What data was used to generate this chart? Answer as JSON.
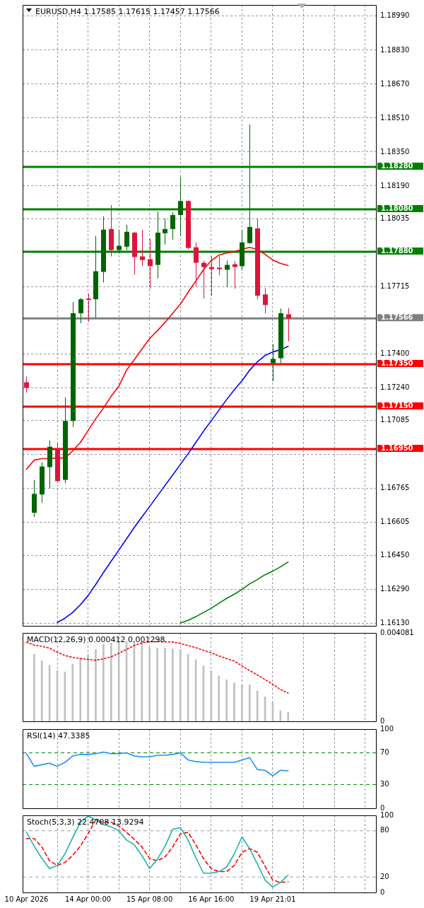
{
  "chart_data": [
    {
      "type": "candlestick",
      "title": "EURUSD,H4 1.17585 1.17615 1.17457 1.17566",
      "categories": [
        null,
        null,
        null,
        null,
        null,
        null,
        null,
        null,
        null,
        null,
        null,
        null,
        null,
        null,
        null,
        null,
        null,
        null,
        null,
        null,
        null,
        null,
        null,
        null,
        null,
        null,
        null,
        null,
        null,
        null,
        null,
        null,
        null,
        null,
        null,
        null,
        null,
        null,
        null,
        null,
        null,
        null,
        null,
        null,
        null,
        null
      ],
      "ohlc": [
        [
          1.17265,
          1.17292,
          1.17216,
          1.17239
        ],
        [
          1.1665,
          1.16805,
          1.1663,
          1.16739
        ],
        [
          1.16736,
          1.16888,
          1.16696,
          1.16868
        ],
        [
          1.16865,
          1.16991,
          1.16766,
          1.16961
        ],
        [
          1.16954,
          1.16981,
          1.16792,
          1.16799
        ],
        [
          1.16805,
          1.17193,
          1.16789,
          1.17083
        ],
        [
          1.17083,
          1.17643,
          1.17054,
          1.1759
        ],
        [
          1.1759,
          1.17663,
          1.17543,
          1.17656
        ],
        [
          1.17659,
          1.17682,
          1.1755,
          1.17653
        ],
        [
          1.17656,
          1.17954,
          1.1757,
          1.17788
        ],
        [
          1.17785,
          1.18047,
          1.17735,
          1.17984
        ],
        [
          1.17987,
          1.181,
          1.17858,
          1.17888
        ],
        [
          1.17888,
          1.17984,
          1.17871,
          1.17908
        ],
        [
          1.17904,
          1.18007,
          1.17888,
          1.17974
        ],
        [
          1.1797,
          1.17974,
          1.17772,
          1.17855
        ],
        [
          1.17858,
          1.17984,
          1.17812,
          1.17841
        ],
        [
          1.17845,
          1.17941,
          1.17706,
          1.17812
        ],
        [
          1.17818,
          1.1807,
          1.17755,
          1.1797
        ],
        [
          1.17967,
          1.18037,
          1.17914,
          1.17987
        ],
        [
          1.17987,
          1.18066,
          1.17937,
          1.18053
        ],
        [
          1.18053,
          1.18232,
          1.17954,
          1.18119
        ],
        [
          1.18119,
          1.18123,
          1.17891,
          1.17898
        ],
        [
          1.17901,
          1.17924,
          1.17716,
          1.17828
        ],
        [
          1.17828,
          1.17838,
          1.17659,
          1.17808
        ],
        [
          1.17808,
          1.17858,
          1.17673,
          1.17798
        ],
        [
          1.17805,
          1.17858,
          1.17769,
          1.17798
        ],
        [
          1.17795,
          1.17838,
          1.17716,
          1.17818
        ],
        [
          1.17821,
          1.17835,
          1.17706,
          1.17808
        ],
        [
          1.17812,
          1.17984,
          1.17792,
          1.17924
        ],
        [
          1.17921,
          1.1848,
          1.17917,
          1.17997
        ],
        [
          1.1799,
          1.18037,
          1.17656,
          1.17673
        ],
        [
          1.17679,
          1.17709,
          1.1759,
          1.17629
        ],
        [
          1.17355,
          1.17444,
          1.17269,
          1.17375
        ],
        [
          1.17378,
          1.17613,
          1.17355,
          1.1759
        ],
        [
          1.17585,
          1.17615,
          1.17457,
          1.17566
        ],
        null,
        null,
        null,
        null,
        null,
        null,
        null,
        null,
        null,
        null,
        null
      ],
      "colors": [
        "#dc143c",
        "#006400",
        "#006400",
        "#006400",
        "#dc143c",
        "#006400",
        "#006400",
        "#006400",
        "#dc143c",
        "#006400",
        "#006400",
        "#dc143c",
        "#006400",
        "#006400",
        "#dc143c",
        "#dc143c",
        "#dc143c",
        "#006400",
        "#006400",
        "#006400",
        "#006400",
        "#dc143c",
        "#dc143c",
        "#dc143c",
        "#dc143c",
        "#dc143c",
        "#006400",
        "#dc143c",
        "#006400",
        "#006400",
        "#dc143c",
        "#dc143c",
        "#006400",
        "#006400",
        "#dc143c",
        null,
        null,
        null,
        null,
        null,
        null,
        null,
        null,
        null,
        null,
        null
      ],
      "series": [
        {
          "type": "line",
          "color": "#ff0000",
          "values": [
            1.16855,
            1.16898,
            1.16905,
            1.16905,
            1.16908,
            1.16908,
            1.16941,
            1.16981,
            1.17037,
            1.17093,
            1.17143,
            1.17199,
            1.17246,
            1.17322,
            1.17371,
            1.17421,
            1.17471,
            1.17507,
            1.17547,
            1.1759,
            1.17633,
            1.17689,
            1.17742,
            1.17795,
            1.17838,
            1.17864,
            1.17874,
            1.17881,
            1.17891,
            1.17901,
            1.17891,
            1.17868,
            1.17841,
            1.17825,
            1.17815,
            null,
            null,
            null,
            null,
            null,
            null,
            null,
            null,
            null,
            null,
            null
          ]
        },
        {
          "type": "line",
          "color": "#0000ff",
          "values": [
            null,
            null,
            null,
            null,
            1.16133,
            1.16153,
            1.1618,
            1.16216,
            1.16259,
            1.16312,
            1.16368,
            1.16421,
            1.16474,
            1.16527,
            1.1658,
            1.1663,
            1.16679,
            1.16729,
            1.16779,
            1.16828,
            1.16878,
            1.16928,
            1.16981,
            1.17034,
            1.17083,
            1.17133,
            1.17183,
            1.17229,
            1.17272,
            1.17322,
            1.17361,
            1.17391,
            1.17408,
            1.17418,
            1.17434,
            null,
            null,
            null,
            null,
            null,
            null,
            null,
            null,
            null,
            null,
            null
          ]
        },
        {
          "type": "line",
          "color": "#008000",
          "values": [
            null,
            null,
            null,
            null,
            null,
            null,
            null,
            null,
            null,
            null,
            null,
            null,
            null,
            null,
            null,
            null,
            null,
            null,
            null,
            null,
            1.1613,
            1.16143,
            1.1616,
            1.1618,
            1.162,
            1.16223,
            1.16246,
            1.16266,
            1.16289,
            1.16315,
            1.16335,
            1.16358,
            1.16375,
            1.16395,
            1.16418,
            null,
            null,
            null,
            null,
            null,
            null,
            null,
            null,
            null,
            null,
            null
          ]
        }
      ],
      "ylim": [
        1.16117,
        1.19043
      ],
      "yticks": [
        {
          "value": 1.1899,
          "label": "1.18990"
        },
        {
          "value": 1.1883,
          "label": "1.18830"
        },
        {
          "value": 1.1867,
          "label": "1.18670"
        },
        {
          "value": 1.1851,
          "label": "1.18510"
        },
        {
          "value": 1.1835,
          "label": "1.18350"
        },
        {
          "value": 1.1819,
          "label": "1.18190"
        },
        {
          "value": 1.18035,
          "label": "1.18035"
        },
        {
          "value": 1.17715,
          "label": "1.17715"
        },
        {
          "value": 1.174,
          "label": "1.17400"
        },
        {
          "value": 1.1724,
          "label": "1.17240"
        },
        {
          "value": 1.17085,
          "label": "1.17085"
        },
        {
          "value": 1.16925,
          "label": null
        },
        {
          "value": 1.16765,
          "label": "1.16765"
        },
        {
          "value": 1.16605,
          "label": "1.16605"
        },
        {
          "value": 1.1645,
          "label": "1.16450"
        },
        {
          "value": 1.1629,
          "label": "1.16290"
        },
        {
          "value": 1.1613,
          "label": "1.16130"
        }
      ],
      "ref_lines": [
        {
          "axis": "y",
          "value": 1.1828,
          "label": "1.18280",
          "color": "#008000"
        },
        {
          "axis": "y",
          "value": 1.1808,
          "label": "1.18080",
          "color": "#008000"
        },
        {
          "axis": "y",
          "value": 1.1788,
          "label": "1.17880",
          "color": "#008000"
        },
        {
          "axis": "y",
          "value": 1.17566,
          "label": "1.17566",
          "color": "#808080"
        },
        {
          "axis": "y",
          "value": 1.1735,
          "label": "1.17350",
          "color": "#ff0000"
        },
        {
          "axis": "y",
          "value": 1.1715,
          "label": "1.17150",
          "color": "#ff0000"
        },
        {
          "axis": "y",
          "value": 1.1695,
          "label": "1.16950",
          "color": "#ff0000"
        }
      ],
      "grid": true,
      "tick_labels": "y"
    },
    {
      "type": "bar",
      "title": "MACD(12,26,9) 0.000412 0.001298",
      "categories": [
        null,
        null,
        null,
        null,
        null,
        null,
        null,
        null,
        null,
        null,
        null,
        null,
        null,
        null,
        null,
        null,
        null,
        null,
        null,
        null,
        null,
        null,
        null,
        null,
        null,
        null,
        null,
        null,
        null,
        null,
        null,
        null,
        null,
        null,
        null,
        null,
        null,
        null,
        null,
        null,
        null,
        null,
        null,
        null,
        null,
        null
      ],
      "series": [
        {
          "color": "#c0c0c0",
          "values": [
            null,
            0.0031,
            0.00279,
            0.00259,
            0.00235,
            0.00228,
            0.00264,
            0.00288,
            0.0031,
            0.00333,
            0.00356,
            0.00362,
            0.00368,
            0.00369,
            0.00369,
            0.00367,
            0.00343,
            0.00338,
            0.00337,
            0.00334,
            0.00333,
            0.0031,
            0.00284,
            0.00256,
            0.00234,
            0.0021,
            0.00192,
            0.00177,
            0.00169,
            0.00168,
            0.00141,
            0.00113,
            0.00087,
            0.00049,
            0.000412,
            null,
            null,
            null,
            null,
            null,
            null,
            null,
            null,
            null,
            null,
            null
          ]
        },
        {
          "type": "line",
          "color": "#ff0000",
          "line_style": "dotted",
          "values": [
            0.00365,
            0.00352,
            0.00346,
            0.00338,
            0.00319,
            0.00304,
            0.00295,
            0.0029,
            0.00286,
            0.00282,
            0.00288,
            0.00298,
            0.00314,
            0.00332,
            0.0035,
            0.00362,
            0.00367,
            0.00368,
            0.00367,
            0.00366,
            0.00359,
            0.0035,
            0.0034,
            0.00328,
            0.00316,
            0.00302,
            0.0029,
            0.00278,
            0.00256,
            0.00234,
            0.00214,
            0.00193,
            0.00171,
            0.00147,
            0.001298,
            null,
            null,
            null,
            null,
            null,
            null,
            null,
            null,
            null,
            null,
            null
          ]
        }
      ],
      "ylim": [
        0,
        0.004081
      ],
      "yticks": [
        0,
        0.004081
      ],
      "grid": "x",
      "tick_labels": "y"
    },
    {
      "type": "line",
      "title": "RSI(14) 47.3385",
      "categories": [
        null,
        null,
        null,
        null,
        null,
        null,
        null,
        null,
        null,
        null,
        null,
        null,
        null,
        null,
        null,
        null,
        null,
        null,
        null,
        null,
        null,
        null,
        null,
        null,
        null,
        null,
        null,
        null,
        null,
        null,
        null,
        null,
        null,
        null,
        null,
        null,
        null,
        null,
        null,
        null,
        null,
        null,
        null,
        null,
        null,
        null
      ],
      "series": [
        {
          "color": "#1e90ff",
          "values": [
            69,
            53,
            55,
            57,
            53,
            58,
            66,
            68,
            68,
            69,
            71,
            69,
            69,
            70,
            66,
            65,
            65,
            67,
            67,
            68,
            70,
            61,
            59,
            58,
            58,
            58,
            58,
            58,
            61,
            64,
            49,
            48,
            41,
            48,
            47.3385,
            null,
            null,
            null,
            null,
            null,
            null,
            null,
            null,
            null,
            null,
            null
          ]
        }
      ],
      "ylim": [
        0,
        100
      ],
      "yticks": [
        0,
        30,
        70,
        100
      ],
      "ref_lines": [
        {
          "axis": "y",
          "value": 70,
          "color": "#008000",
          "line_style": "dashed"
        },
        {
          "axis": "y",
          "value": 30,
          "color": "#008000",
          "line_style": "dashed"
        }
      ],
      "grid": "x",
      "tick_labels": "y"
    },
    {
      "type": "line",
      "title": "Stoch(5,3,3) 22.4708 13.9294",
      "categories": [
        "10 Apr 2026",
        null,
        null,
        null,
        null,
        null,
        null,
        null,
        "14 Apr 00:00",
        null,
        null,
        null,
        null,
        null,
        null,
        null,
        "15 Apr 08:00",
        null,
        null,
        null,
        null,
        null,
        null,
        null,
        "16 Apr 16:00",
        null,
        null,
        null,
        null,
        null,
        null,
        null,
        "19 Apr 21:01",
        null,
        null,
        null,
        null,
        null,
        null,
        null,
        null,
        null,
        null,
        null,
        null,
        null
      ],
      "series": [
        {
          "color": "#20b2aa",
          "values": [
            78,
            60,
            44,
            31,
            35,
            50,
            71,
            91,
            99,
            94,
            88,
            85,
            80,
            68,
            62,
            48,
            31,
            43,
            60,
            82,
            84,
            68,
            45,
            25,
            25,
            27,
            33,
            50,
            72,
            57,
            37,
            16,
            7,
            13,
            22.4708,
            null,
            null,
            null,
            null,
            null,
            null,
            null,
            null,
            null,
            null,
            null
          ]
        },
        {
          "color": "#ff0000",
          "line_style": "dashed",
          "values": [
            70,
            70,
            59,
            41,
            35,
            39,
            48,
            60,
            76,
            94,
            91,
            91,
            86,
            78,
            69,
            59,
            44,
            41,
            46,
            59,
            76,
            78,
            62,
            44,
            31,
            27,
            27,
            35,
            52,
            57,
            52,
            34,
            16,
            13,
            13.9294,
            null,
            null,
            null,
            null,
            null,
            null,
            null,
            null,
            null,
            null,
            null
          ]
        }
      ],
      "ylim": [
        0,
        100
      ],
      "yticks": [
        0,
        20,
        80,
        100
      ],
      "ref_lines": [
        {
          "axis": "y",
          "value": 80,
          "color": "#a0a0a0",
          "line_style": "dashed"
        },
        {
          "axis": "y",
          "value": 20,
          "color": "#a0a0a0",
          "line_style": "dashed"
        }
      ],
      "grid": "x"
    }
  ]
}
